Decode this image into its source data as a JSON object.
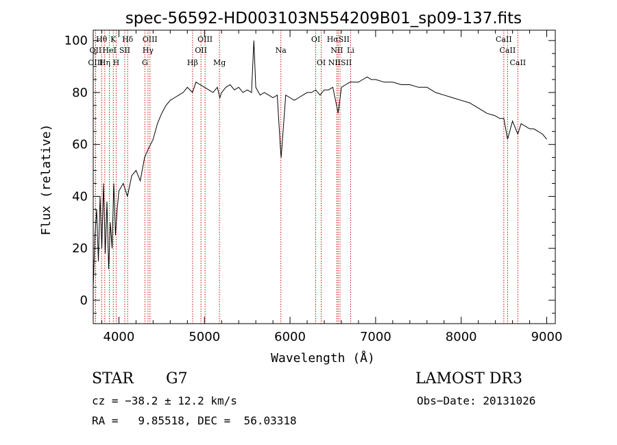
{
  "chart_data": {
    "type": "line",
    "title": "spec-56592-HD003103N554209B01_sp09-137.fits",
    "xlabel": "Wavelength (Å)",
    "ylabel": "Flux (relative)",
    "xlim": [
      3700,
      9100
    ],
    "ylim": [
      -9,
      104
    ],
    "x_ticks": [
      4000,
      5000,
      6000,
      7000,
      8000,
      9000
    ],
    "y_ticks": [
      0,
      20,
      40,
      60,
      80,
      100
    ],
    "grid": false,
    "series": [
      {
        "x": [
          3700,
          3720,
          3740,
          3760,
          3780,
          3800,
          3820,
          3840,
          3860,
          3880,
          3900,
          3920,
          3940,
          3960,
          3980,
          4000,
          4050,
          4100,
          4150,
          4200,
          4250,
          4300,
          4340,
          4400,
          4450,
          4500,
          4550,
          4600,
          4650,
          4700,
          4750,
          4800,
          4860,
          4900,
          4950,
          5000,
          5050,
          5100,
          5150,
          5180,
          5200,
          5250,
          5300,
          5350,
          5400,
          5450,
          5500,
          5550,
          5577,
          5600,
          5650,
          5700,
          5750,
          5800,
          5850,
          5889,
          5896,
          5950,
          6000,
          6050,
          6100,
          6150,
          6200,
          6250,
          6300,
          6350,
          6400,
          6450,
          6500,
          6563,
          6600,
          6650,
          6700,
          6750,
          6800,
          6850,
          6900,
          6950,
          7000,
          7100,
          7200,
          7300,
          7400,
          7500,
          7600,
          7700,
          7800,
          7900,
          8000,
          8100,
          8200,
          8300,
          8400,
          8450,
          8498,
          8542,
          8600,
          8662,
          8700,
          8750,
          8800,
          8850,
          8900,
          8950,
          9000
        ],
        "y": [
          5,
          25,
          35,
          15,
          40,
          20,
          45,
          18,
          38,
          12,
          30,
          20,
          45,
          25,
          35,
          42,
          45,
          40,
          48,
          50,
          46,
          55,
          58,
          62,
          68,
          72,
          75,
          77,
          78,
          79,
          80,
          82,
          80,
          84,
          83,
          82,
          81,
          80,
          82,
          78,
          80,
          82,
          83,
          81,
          82,
          80,
          81,
          80,
          100,
          82,
          79,
          80,
          79,
          78,
          79,
          58,
          55,
          79,
          78,
          77,
          78,
          79,
          80,
          80,
          81,
          79,
          81,
          81,
          82,
          72,
          82,
          83,
          84,
          84,
          84,
          85,
          86,
          85,
          85,
          84,
          84,
          83,
          83,
          82,
          82,
          80,
          79,
          78,
          77,
          76,
          74,
          72,
          71,
          70,
          70,
          62,
          69,
          64,
          68,
          67,
          66,
          66,
          65,
          64,
          62
        ]
      }
    ],
    "spectral_lines": [
      {
        "label": "Hθ",
        "x": 3798,
        "row": 0
      },
      {
        "label": "K",
        "x": 3934,
        "row": 0
      },
      {
        "label": "Hδ",
        "x": 4102,
        "row": 0
      },
      {
        "label": "OIII",
        "x": 4363,
        "row": 0
      },
      {
        "label": "OIII",
        "x": 5007,
        "row": 0
      },
      {
        "label": "OI",
        "x": 6300,
        "row": 0
      },
      {
        "label": "HαSII",
        "x": 6563,
        "row": 0
      },
      {
        "label": "CaII",
        "x": 8498,
        "row": 0
      },
      {
        "label": "OII",
        "x": 3727,
        "row": 1
      },
      {
        "label": "HeI",
        "x": 3889,
        "row": 1
      },
      {
        "label": "SII",
        "x": 4068,
        "row": 1
      },
      {
        "label": "Hγ",
        "x": 4340,
        "row": 1
      },
      {
        "label": "OII",
        "x": 4959,
        "row": 1
      },
      {
        "label": "Na",
        "x": 5893,
        "row": 1
      },
      {
        "label": "NII",
        "x": 6548,
        "row": 1
      },
      {
        "label": "Li",
        "x": 6708,
        "row": 1
      },
      {
        "label": "CaII",
        "x": 8542,
        "row": 1
      },
      {
        "label": "OIII",
        "x": 3727,
        "row": 2
      },
      {
        "label": "Hη",
        "x": 3835,
        "row": 2
      },
      {
        "label": "H",
        "x": 3968,
        "row": 2
      },
      {
        "label": "G",
        "x": 4304,
        "row": 2
      },
      {
        "label": "Hβ",
        "x": 4861,
        "row": 2
      },
      {
        "label": "Mg",
        "x": 5175,
        "row": 2
      },
      {
        "label": "OI",
        "x": 6364,
        "row": 2
      },
      {
        "label": "NIISII",
        "x": 6584,
        "row": 2
      },
      {
        "label": "CaII",
        "x": 8662,
        "row": 2
      }
    ],
    "line_color": "#000000",
    "marker_color": "#cc0000"
  },
  "info": {
    "object_type": "STAR",
    "subclass": "G7",
    "survey": "LAMOST DR3",
    "cz": "cz = −38.2 ± 12.2 km/s",
    "obs_date": "Obs−Date: 20131026",
    "coords": "RA =   9.85518, DEC =  56.03318"
  }
}
